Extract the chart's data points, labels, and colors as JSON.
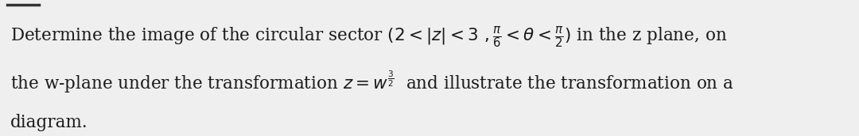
{
  "background_color": "#efefef",
  "text_color": "#1a1a1a",
  "font_size": 15.5,
  "fig_width": 10.8,
  "fig_height": 1.72,
  "dpi": 100
}
